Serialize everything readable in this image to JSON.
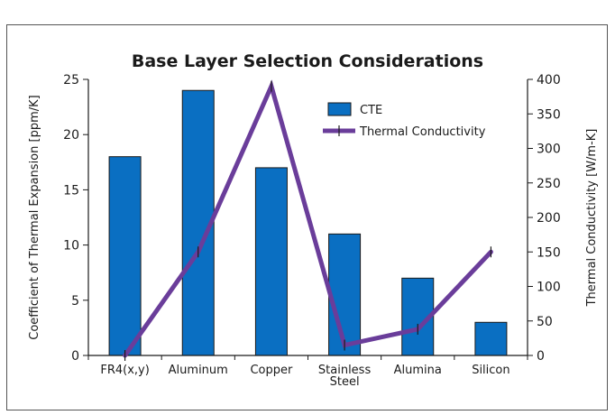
{
  "chart_data": {
    "type": "bar",
    "title": "Base Layer Selection Considerations",
    "categories": [
      "FR4(x,y)",
      "Aluminum",
      "Copper",
      "Stainless Steel",
      "Alumina",
      "Silicon"
    ],
    "category_lines": [
      [
        "FR4(x,y)"
      ],
      [
        "Aluminum"
      ],
      [
        "Copper"
      ],
      [
        "Stainless",
        "Steel"
      ],
      [
        "Alumina"
      ],
      [
        "Silicon"
      ]
    ],
    "series": [
      {
        "name": "CTE",
        "type": "bar",
        "axis": "left",
        "color": "#0a6fc2",
        "values": [
          18,
          24,
          17,
          11,
          7,
          3
        ]
      },
      {
        "name": "Thermal Conductivity",
        "type": "line",
        "axis": "right",
        "color": "#6a3d9a",
        "values": [
          0,
          150,
          390,
          15,
          38,
          150
        ]
      }
    ],
    "ylabel": "Coefficient of Thermal Expansion [ppm/K]",
    "y2label": "Thermal Conductivity [W/m-K]",
    "ylim": [
      0,
      25
    ],
    "y2lim": [
      0,
      400
    ],
    "yticks": [
      0,
      5,
      10,
      15,
      20,
      25
    ],
    "y2ticks": [
      0,
      50,
      100,
      150,
      200,
      250,
      300,
      350,
      400
    ],
    "grid": false,
    "legend": "top-right"
  }
}
